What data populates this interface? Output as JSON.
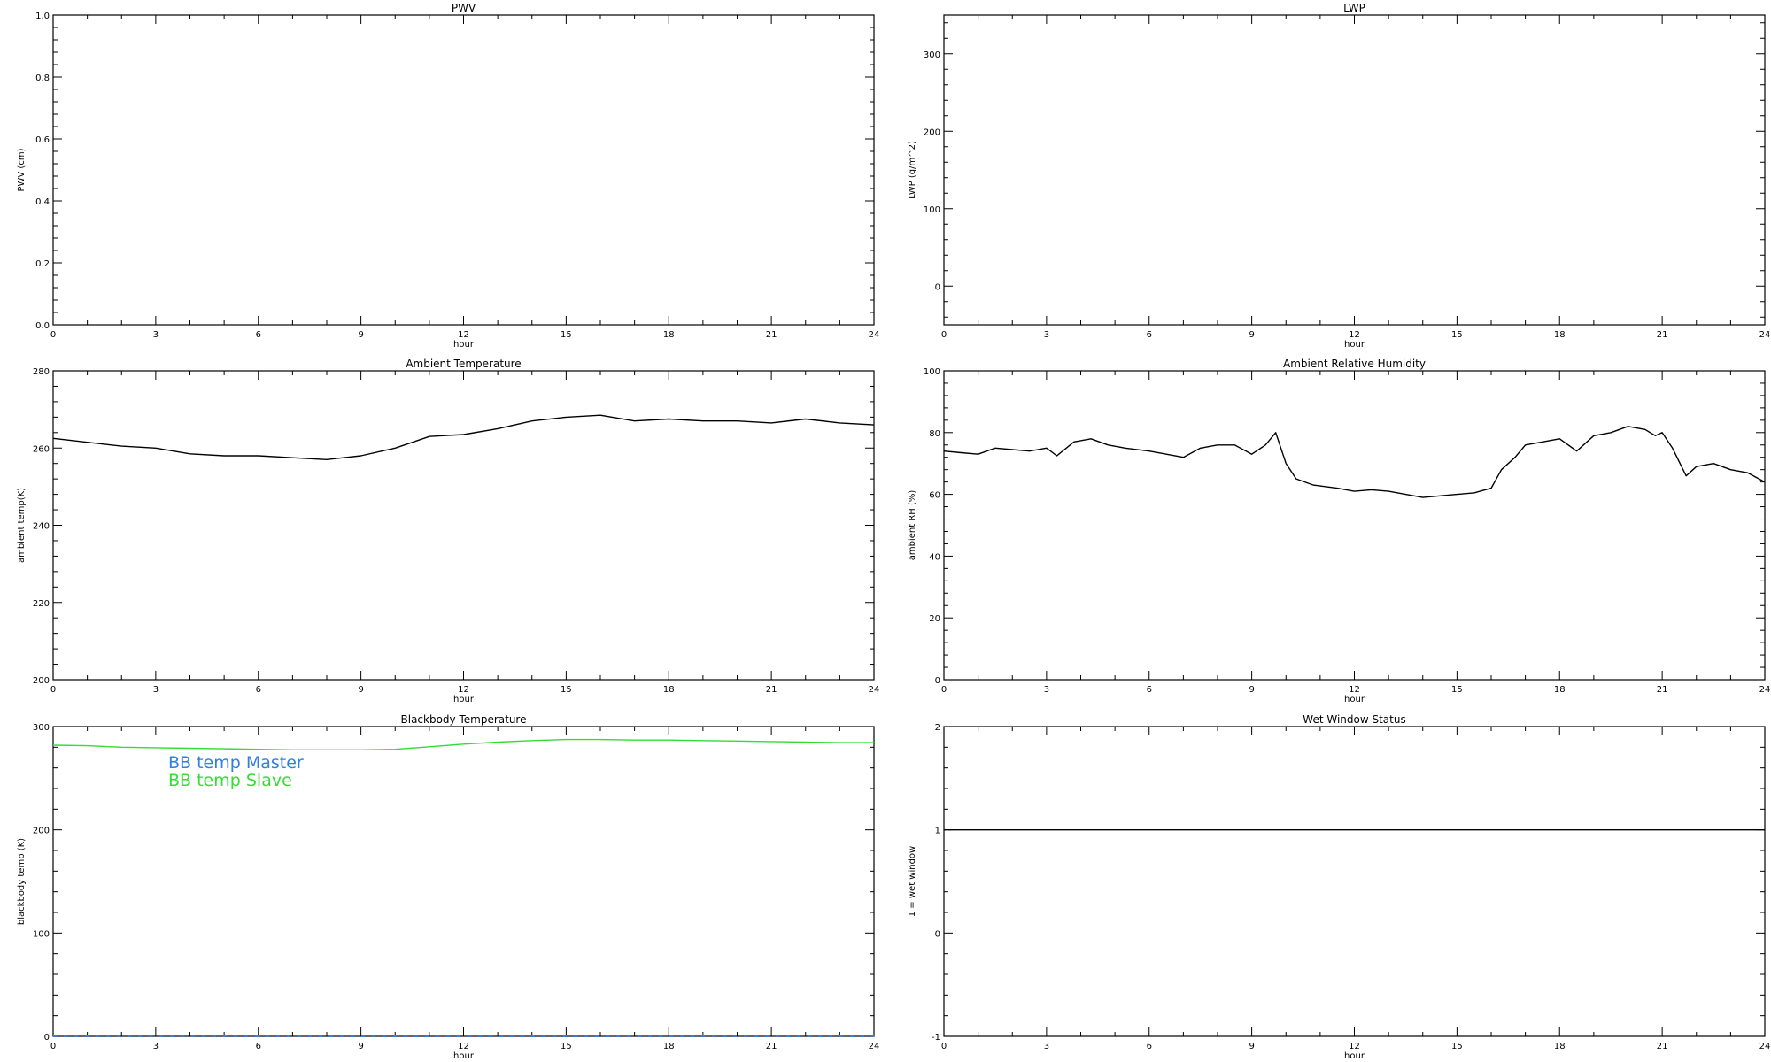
{
  "chart_data": [
    {
      "id": "pwv",
      "type": "line",
      "title": "PWV",
      "xlabel": "hour",
      "ylabel": "PWV (cm)",
      "xlim": [
        0,
        24
      ],
      "ylim": [
        0,
        1
      ],
      "xticks": [
        "0",
        "3",
        "6",
        "9",
        "12",
        "15",
        "18",
        "21",
        "24"
      ],
      "yticks": [
        "0.0",
        "0.2",
        "0.4",
        "0.6",
        "0.8",
        "1.0"
      ],
      "series": []
    },
    {
      "id": "lwp",
      "type": "line",
      "title": "LWP",
      "xlabel": "hour",
      "ylabel": "LWP (g/m^2)",
      "xlim": [
        0,
        24
      ],
      "ylim": [
        -50,
        350
      ],
      "xticks": [
        "0",
        "3",
        "6",
        "9",
        "12",
        "15",
        "18",
        "21",
        "24"
      ],
      "yticks": [
        "0",
        "100",
        "200",
        "300"
      ],
      "series": []
    },
    {
      "id": "ambient_temp",
      "type": "line",
      "title": "Ambient Temperature",
      "xlabel": "hour",
      "ylabel": "ambient temp(K)",
      "xlim": [
        0,
        24
      ],
      "ylim": [
        200,
        280
      ],
      "xticks": [
        "0",
        "3",
        "6",
        "9",
        "12",
        "15",
        "18",
        "21",
        "24"
      ],
      "yticks": [
        "200",
        "220",
        "240",
        "260",
        "280"
      ],
      "series": [
        {
          "color": "#000000",
          "x": [
            0,
            1,
            2,
            3,
            4,
            5,
            6,
            7,
            8,
            9,
            10,
            11,
            12,
            13,
            14,
            15,
            16,
            17,
            18,
            19,
            20,
            21,
            22,
            23,
            24
          ],
          "y": [
            262.5,
            261.5,
            260.5,
            260,
            258.5,
            258,
            258,
            257.5,
            257,
            258,
            260,
            263,
            263.5,
            265,
            267,
            268,
            268.5,
            267,
            267.5,
            267,
            267,
            266.5,
            267.5,
            266.5,
            266
          ]
        }
      ]
    },
    {
      "id": "ambient_rh",
      "type": "line",
      "title": "Ambient Relative Humidity",
      "xlabel": "hour",
      "ylabel": "ambient RH (%)",
      "xlim": [
        0,
        24
      ],
      "ylim": [
        0,
        100
      ],
      "xticks": [
        "0",
        "3",
        "6",
        "9",
        "12",
        "15",
        "18",
        "21",
        "24"
      ],
      "yticks": [
        "0",
        "20",
        "40",
        "60",
        "80",
        "100"
      ],
      "series": [
        {
          "color": "#000000",
          "x": [
            0,
            0.5,
            1,
            1.5,
            2,
            2.5,
            3,
            3.3,
            3.8,
            4.3,
            4.8,
            5.3,
            6,
            6.5,
            7,
            7.5,
            8,
            8.5,
            9,
            9.4,
            9.7,
            10,
            10.3,
            10.8,
            11.5,
            12,
            12.5,
            13,
            13.5,
            14,
            14.5,
            15,
            15.5,
            16,
            16.3,
            16.7,
            17,
            17.5,
            18,
            18.5,
            19,
            19.5,
            20,
            20.5,
            20.8,
            21,
            21.3,
            21.7,
            22,
            22.5,
            23,
            23.5,
            24
          ],
          "y": [
            74,
            73.5,
            73,
            75,
            74.5,
            74,
            75,
            72.5,
            77,
            78,
            76,
            75,
            74,
            73,
            72,
            75,
            76,
            76,
            73,
            76,
            80,
            70,
            65,
            63,
            62,
            61,
            61.5,
            61,
            60,
            59,
            59.5,
            60,
            60.5,
            62,
            68,
            72,
            76,
            77,
            78,
            74,
            79,
            80,
            82,
            81,
            79,
            80,
            75,
            66,
            69,
            70,
            68,
            67,
            64
          ]
        }
      ]
    },
    {
      "id": "bb_temp",
      "type": "line",
      "title": "Blackbody Temperature",
      "xlabel": "hour",
      "ylabel": "blackbody temp (K)",
      "xlim": [
        0,
        24
      ],
      "ylim": [
        0,
        300
      ],
      "xticks": [
        "0",
        "3",
        "6",
        "9",
        "12",
        "15",
        "18",
        "21",
        "24"
      ],
      "yticks": [
        "0",
        "100",
        "200",
        "300"
      ],
      "legend": [
        "BB temp Master",
        "BB temp Slave"
      ],
      "series": [
        {
          "name": "BB temp Master",
          "color": "#3080e0",
          "dashed": true,
          "x": [
            0,
            24
          ],
          "y": [
            0,
            0
          ]
        },
        {
          "name": "BB temp Slave",
          "color": "#33dd33",
          "x": [
            0,
            1,
            2,
            3,
            4,
            5,
            6,
            7,
            8,
            9,
            10,
            11,
            12,
            13,
            14,
            15,
            16,
            17,
            18,
            19,
            20,
            21,
            22,
            23,
            24
          ],
          "y": [
            282,
            281.5,
            280,
            279.5,
            279,
            278.5,
            278,
            277.5,
            277.5,
            277.5,
            278,
            280.5,
            283,
            285,
            286.5,
            287.5,
            287.5,
            287,
            287,
            286.5,
            286,
            285.5,
            285,
            284.5,
            284.5
          ]
        }
      ]
    },
    {
      "id": "wet_window",
      "type": "line",
      "title": "Wet Window Status",
      "xlabel": "hour",
      "ylabel": "1 = wet window",
      "xlim": [
        0,
        24
      ],
      "ylim": [
        -1,
        2
      ],
      "xticks": [
        "0",
        "3",
        "6",
        "9",
        "12",
        "15",
        "18",
        "21",
        "24"
      ],
      "yticks": [
        "-1",
        "0",
        "1",
        "2"
      ],
      "series": [
        {
          "color": "#000000",
          "x": [
            0,
            24
          ],
          "y": [
            1,
            1
          ]
        }
      ]
    }
  ]
}
